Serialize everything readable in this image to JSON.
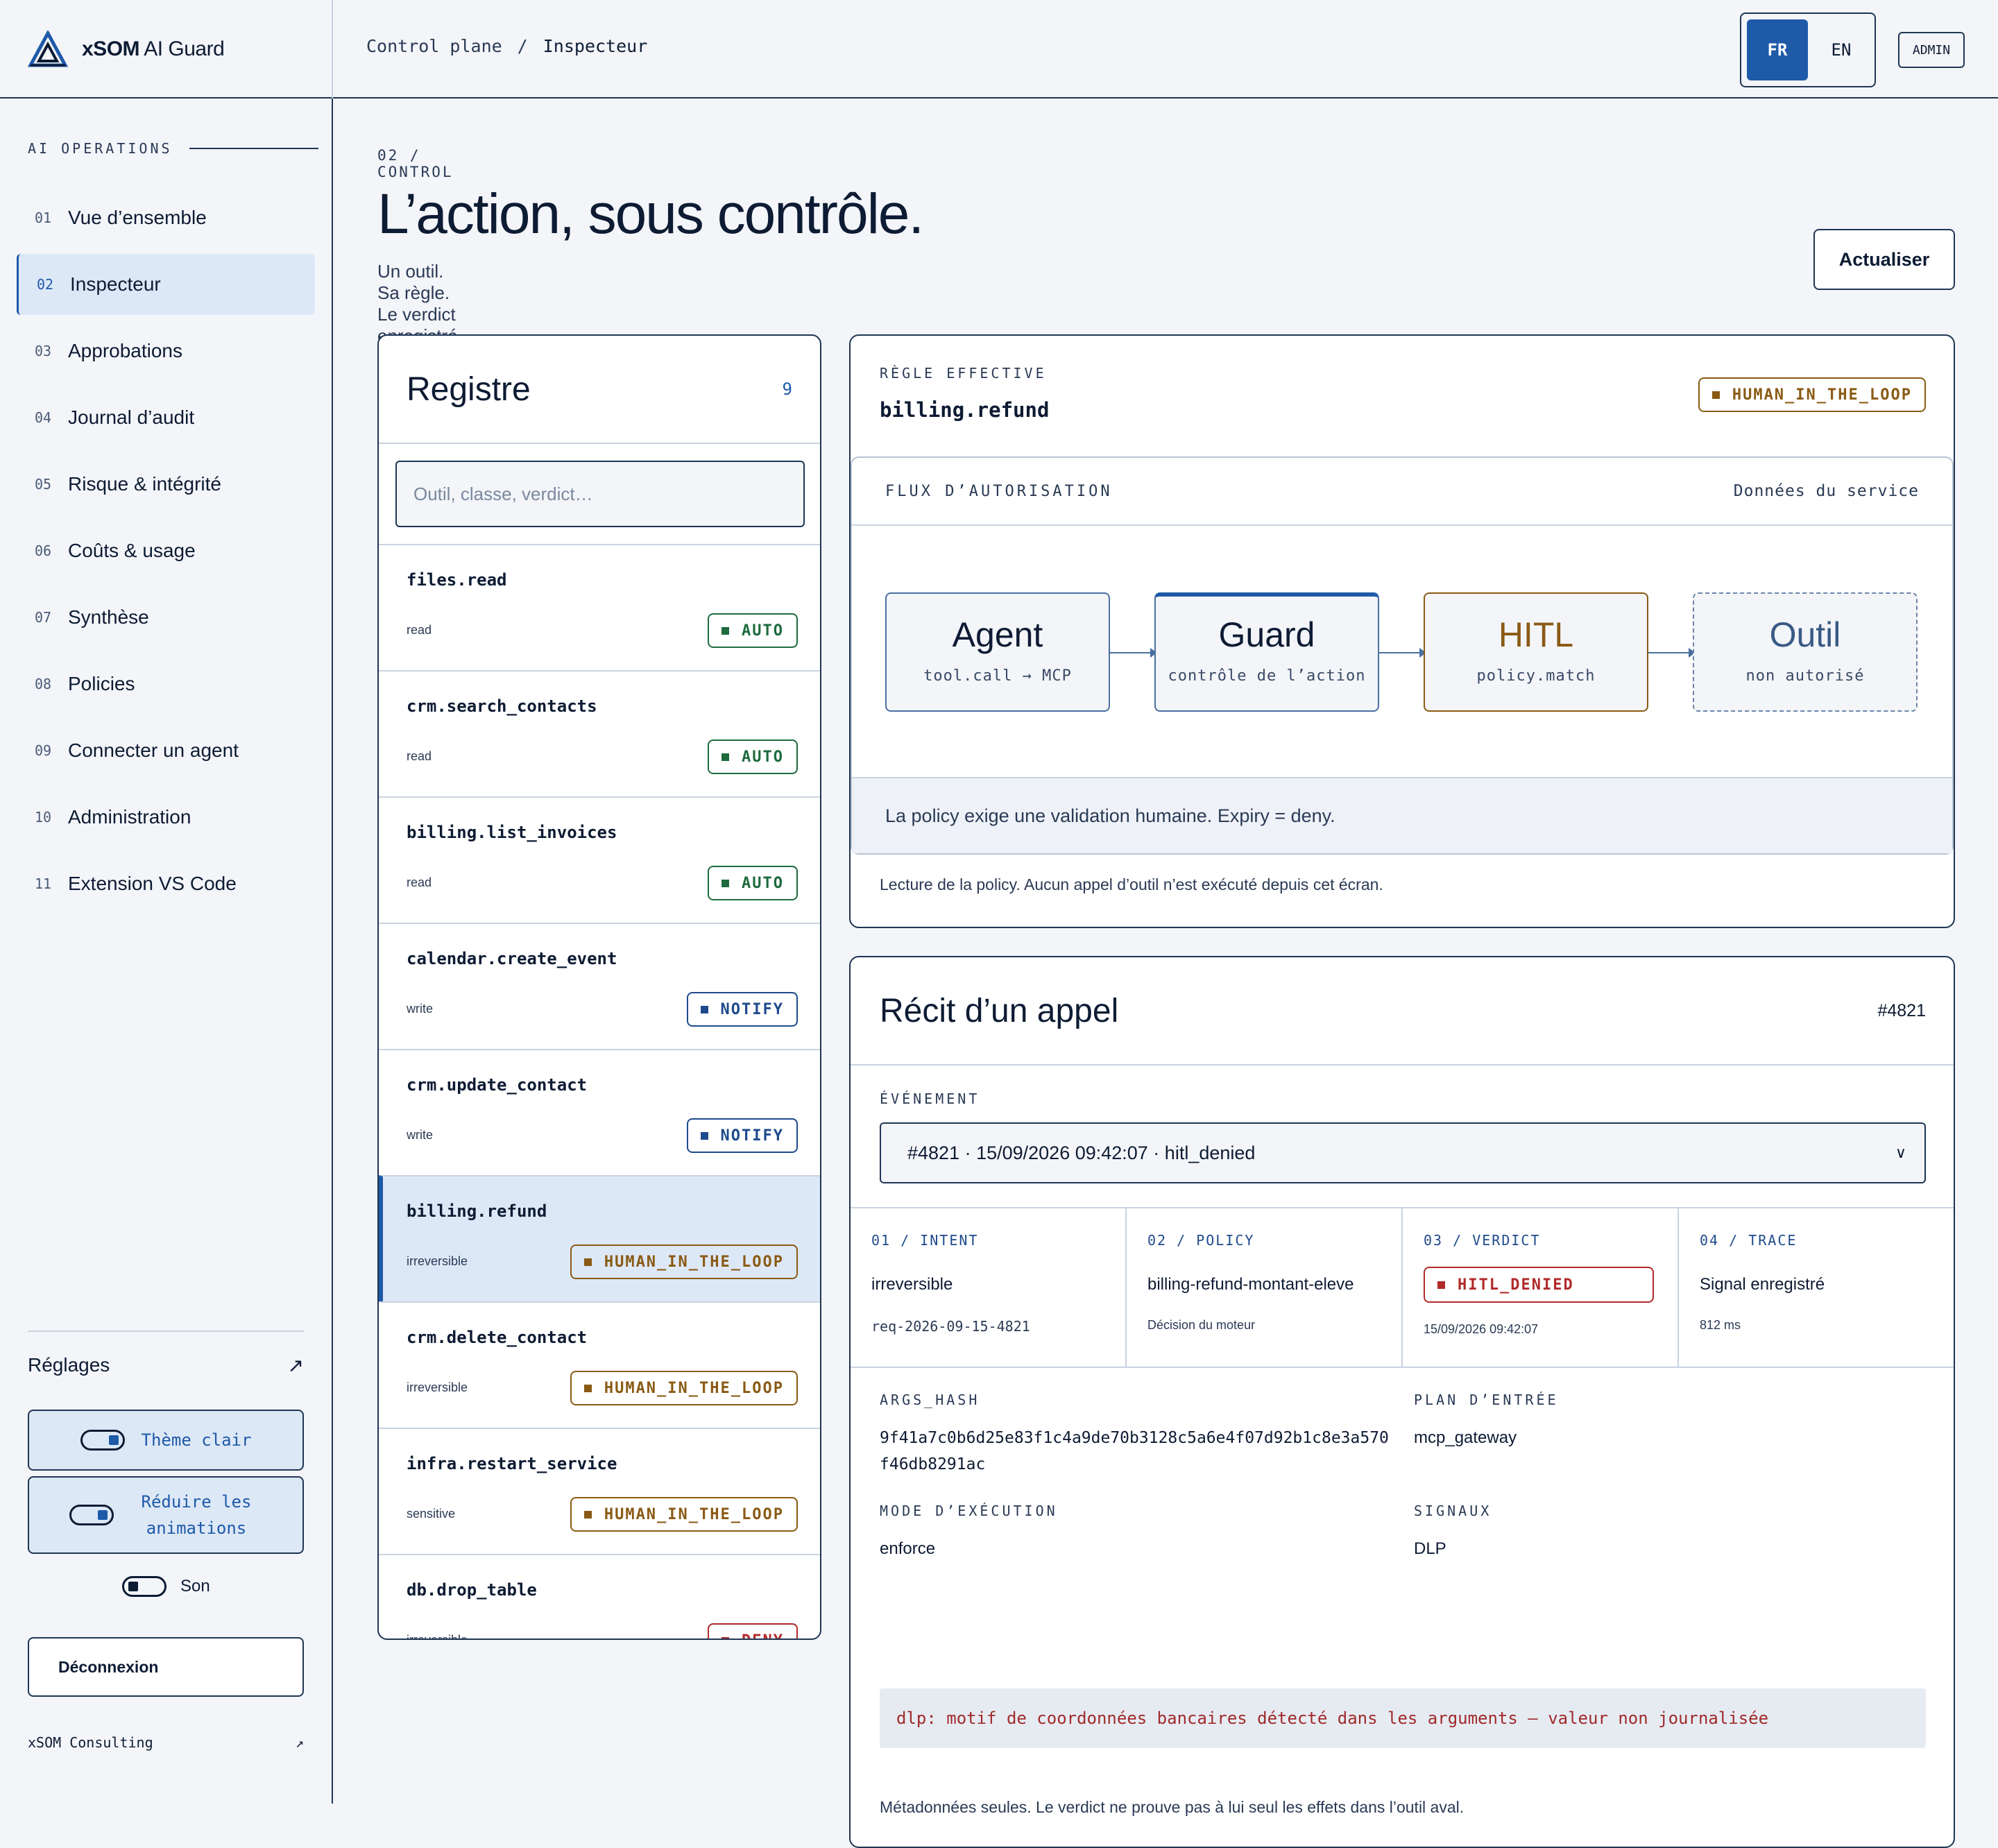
{
  "brand": {
    "name_bold": "xSOM",
    "name_rest": " AI Guard"
  },
  "breadcrumb": {
    "root": "Control plane",
    "separator": "/",
    "current": "Inspecteur"
  },
  "lang": {
    "fr": "FR",
    "en": "EN"
  },
  "role_badge": "ADMIN",
  "sidebar": {
    "section": "AI OPERATIONS",
    "items": [
      {
        "num": "01",
        "label": "Vue d’ensemble"
      },
      {
        "num": "02",
        "label": "Inspecteur",
        "active": true
      },
      {
        "num": "03",
        "label": "Approbations"
      },
      {
        "num": "04",
        "label": "Journal d’audit"
      },
      {
        "num": "05",
        "label": "Risque & intégrité"
      },
      {
        "num": "06",
        "label": "Coûts & usage"
      },
      {
        "num": "07",
        "label": "Synthèse"
      },
      {
        "num": "08",
        "label": "Policies"
      },
      {
        "num": "09",
        "label": "Connecter un agent"
      },
      {
        "num": "10",
        "label": "Administration"
      },
      {
        "num": "11",
        "label": "Extension VS Code"
      }
    ],
    "settings_label": "Réglages",
    "settings_icon": "↗",
    "theme_toggle": "Thème clair",
    "motion_toggle": "Réduire les animations",
    "sound_toggle": "Son",
    "logout": "Déconnexion",
    "footer_label": "xSOM Consulting",
    "footer_icon": "↗"
  },
  "page": {
    "kicker": "02 / CONTROL",
    "title": "L’action, sous contrôle.",
    "subtitle": "Un outil. Sa règle. Le verdict enregistré.",
    "refresh": "Actualiser"
  },
  "registre": {
    "title": "Registre",
    "count": "9",
    "search_placeholder": "Outil, classe, verdict…",
    "rows": [
      {
        "tool": "files.read",
        "cls": "read",
        "verdict": "AUTO"
      },
      {
        "tool": "crm.search_contacts",
        "cls": "read",
        "verdict": "AUTO"
      },
      {
        "tool": "billing.list_invoices",
        "cls": "read",
        "verdict": "AUTO"
      },
      {
        "tool": "calendar.create_event",
        "cls": "write",
        "verdict": "NOTIFY"
      },
      {
        "tool": "crm.update_contact",
        "cls": "write",
        "verdict": "NOTIFY"
      },
      {
        "tool": "billing.refund",
        "cls": "irreversible",
        "verdict": "HUMAN_IN_THE_LOOP",
        "selected": true
      },
      {
        "tool": "crm.delete_contact",
        "cls": "irreversible",
        "verdict": "HUMAN_IN_THE_LOOP"
      },
      {
        "tool": "infra.restart_service",
        "cls": "sensitive",
        "verdict": "HUMAN_IN_THE_LOOP"
      },
      {
        "tool": "db.drop_table",
        "cls": "irreversible",
        "verdict": "DENY"
      }
    ]
  },
  "regle": {
    "label": "RÈGLE EFFECTIVE",
    "name": "billing.refund",
    "badge": "HUMAN_IN_THE_LOOP",
    "flux_label": "FLUX D’AUTORISATION",
    "flux_source": "Données du service",
    "nodes": [
      {
        "title": "Agent",
        "sub": "tool.call → MCP"
      },
      {
        "title": "Guard",
        "sub": "contrôle de l’action"
      },
      {
        "title": "HITL",
        "sub": "policy.match"
      },
      {
        "title": "Outil",
        "sub": "non autorisé"
      }
    ],
    "note": "La policy exige une validation humaine. Expiry = deny.",
    "footer": "Lecture de la policy. Aucun appel d’outil n’est exécuté depuis cet écran."
  },
  "recit": {
    "title": "Récit d’un appel",
    "id": "#4821",
    "event_label": "ÉVÉNEMENT",
    "event_value": "#4821 · 15/09/2026 09:42:07 · hitl_denied",
    "steps": {
      "intent": {
        "label": "01 / INTENT",
        "value": "irreversible",
        "sub": "req-2026-09-15-4821"
      },
      "policy": {
        "label": "02 / POLICY",
        "value": "billing-refund-montant-eleve",
        "sub": "Décision du moteur"
      },
      "verdict": {
        "label": "03 / VERDICT",
        "badge": "HITL_DENIED",
        "sub": "15/09/2026 09:42:07"
      },
      "trace": {
        "label": "04 / TRACE",
        "value": "Signal enregistré",
        "sub": "812 ms"
      }
    },
    "args_hash_label": "ARGS_HASH",
    "args_hash": "9f41a7c0b6d25e83f1c4a9de70b3128c5a6e4f07d92b1c8e3a570f46db8291ac",
    "plan_label": "PLAN D’ENTRÉE",
    "plan": "mcp_gateway",
    "mode_label": "MODE D’EXÉCUTION",
    "mode": "enforce",
    "signals_label": "SIGNAUX",
    "signals": "DLP",
    "dlp_message": "dlp: motif de coordonnées bancaires détecté dans les arguments — valeur non journalisée",
    "footer": "Métadonnées seules. Le verdict ne prouve pas à lui seul les effets dans l’outil aval."
  },
  "colors": {
    "accent": "#1e5aa8",
    "auto": "#1e6b3e",
    "notify": "#1e4a8c",
    "hitl": "#8a5a14",
    "deny": "#b02a2a",
    "ink": "#0d1b33"
  }
}
